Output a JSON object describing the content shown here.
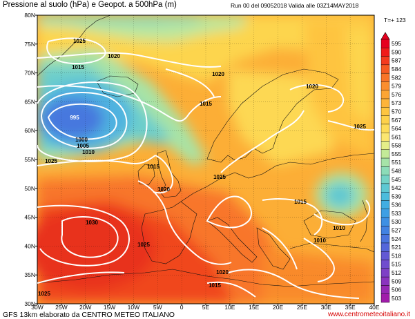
{
  "header": {
    "title": "Pressione al suolo (hPa) e Geopot. a 500hPa (m)",
    "run_info": "Run 00 del 09052018  Valida alle 03Z14MAY2018",
    "forecast_step": "T=+ 123"
  },
  "footer": {
    "credit": "GFS 13km elaborato da CENTRO METEO ITALIANO",
    "website": "www.centrometeoitaliano.it"
  },
  "axes": {
    "lat_labels": [
      "80N",
      "75N",
      "70N",
      "65N",
      "60N",
      "55N",
      "50N",
      "45N",
      "40N",
      "35N",
      "30N"
    ],
    "lon_labels": [
      "30W",
      "25W",
      "20W",
      "15W",
      "10W",
      "5W",
      "0",
      "5E",
      "10E",
      "15E",
      "20E",
      "25E",
      "30E",
      "35E",
      "40E"
    ]
  },
  "legend": {
    "levels": [
      "595",
      "590",
      "587",
      "584",
      "582",
      "579",
      "576",
      "573",
      "570",
      "567",
      "564",
      "561",
      "558",
      "555",
      "551",
      "548",
      "545",
      "542",
      "539",
      "536",
      "533",
      "530",
      "527",
      "524",
      "521",
      "518",
      "515",
      "512",
      "509",
      "506",
      "503"
    ],
    "colors": [
      "#e6001e",
      "#f01a1a",
      "#f43a1e",
      "#f65a22",
      "#f87428",
      "#fa8e2e",
      "#fca534",
      "#fdb43a",
      "#fec540",
      "#fed14a",
      "#fedc58",
      "#fbe670",
      "#e5ef88",
      "#c3ea98",
      "#a6e3a8",
      "#8cdcb8",
      "#74d3c6",
      "#5ec8d2",
      "#4cbcdc",
      "#42aee2",
      "#3e9fe4",
      "#3e90e4",
      "#4282e2",
      "#4a74de",
      "#5466da",
      "#6258d4",
      "#704cce",
      "#7e40c6",
      "#8a34be",
      "#9628b4",
      "#a01caa"
    ]
  },
  "pressure_labels": [
    {
      "text": "1025",
      "color": "#000000"
    },
    {
      "text": "1020",
      "color": "#000000"
    },
    {
      "text": "1015",
      "color": "#000000"
    },
    {
      "text": "1020",
      "color": "#000000"
    },
    {
      "text": "1015",
      "color": "#000000"
    },
    {
      "text": "1020",
      "color": "#000000"
    },
    {
      "text": "995",
      "color": "#ffffff"
    },
    {
      "text": "1000",
      "color": "#000000"
    },
    {
      "text": "1005",
      "color": "#000000"
    },
    {
      "text": "1010",
      "color": "#000000"
    },
    {
      "text": "1025",
      "color": "#000000"
    },
    {
      "text": "1015",
      "color": "#000000"
    },
    {
      "text": "1020",
      "color": "#000000"
    },
    {
      "text": "1025",
      "color": "#000000"
    },
    {
      "text": "1015",
      "color": "#000000"
    },
    {
      "text": "1025",
      "color": "#000000"
    },
    {
      "text": "1030",
      "color": "#000000"
    },
    {
      "text": "1010",
      "color": "#000000"
    },
    {
      "text": "1025",
      "color": "#000000"
    },
    {
      "text": "1010",
      "color": "#000000"
    },
    {
      "text": "1020",
      "color": "#000000"
    },
    {
      "text": "1015",
      "color": "#000000"
    },
    {
      "text": "1025",
      "color": "#000000"
    }
  ]
}
